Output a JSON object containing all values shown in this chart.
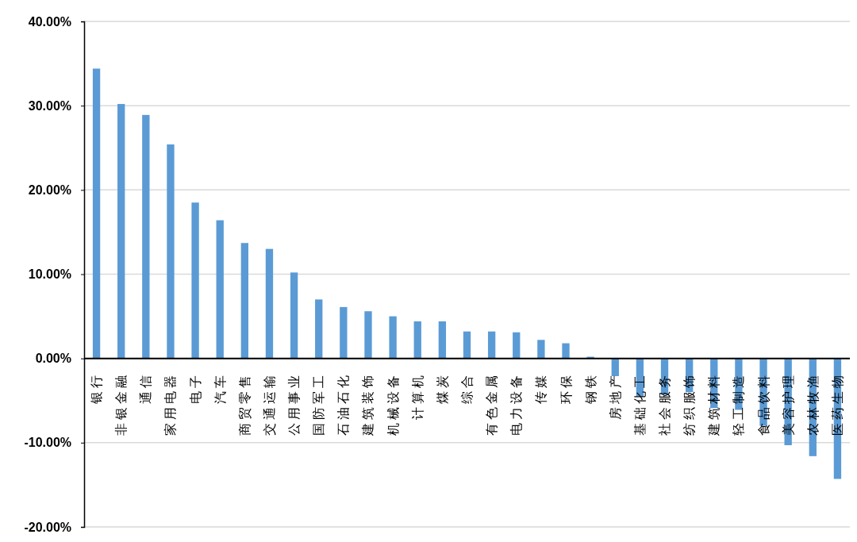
{
  "chart_data": {
    "type": "bar",
    "categories": [
      "银行",
      "非银金融",
      "通信",
      "家用电器",
      "电子",
      "汽车",
      "商贸零售",
      "交通运输",
      "公用事业",
      "国防军工",
      "石油石化",
      "建筑装饰",
      "机械设备",
      "计算机",
      "煤炭",
      "综合",
      "有色金属",
      "电力设备",
      "传媒",
      "环保",
      "钢铁",
      "房地产",
      "基础化工",
      "社会服务",
      "纺织服饰",
      "建筑材料",
      "轻工制造",
      "食品饮料",
      "美容护理",
      "农林牧渔",
      "医药生物"
    ],
    "values": [
      34.4,
      30.2,
      28.9,
      25.4,
      18.5,
      16.4,
      13.7,
      13.0,
      10.2,
      7.0,
      6.1,
      5.6,
      5.0,
      4.4,
      4.4,
      3.2,
      3.2,
      3.1,
      2.2,
      1.8,
      0.2,
      -2.1,
      -4.5,
      -4.3,
      -4.0,
      -5.9,
      -6.1,
      -8.0,
      -10.3,
      -11.6,
      -14.3
    ],
    "color": "#5b9bd5",
    "ylim": [
      -20,
      40
    ],
    "yticks": [
      {
        "value": -20,
        "label": "-20.00%"
      },
      {
        "value": -10,
        "label": "-10.00%"
      },
      {
        "value": 0,
        "label": "0.00%"
      },
      {
        "value": 10,
        "label": "10.00%"
      },
      {
        "value": 20,
        "label": "20.00%"
      },
      {
        "value": 30,
        "label": "30.00%"
      },
      {
        "value": 40,
        "label": "40.00%"
      }
    ],
    "grid": "y"
  }
}
